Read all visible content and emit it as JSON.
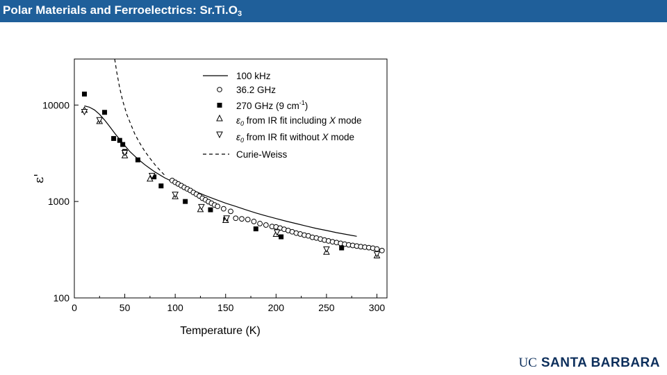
{
  "header": {
    "title_main": "Polar Materials and Ferroelectrics: Sr.Ti.O",
    "title_sub": "3",
    "bg_color": "#1f5f9a"
  },
  "logo": {
    "uc": "UC",
    "name": "SANTA BARBARA",
    "color": "#0d2f5c"
  },
  "chart_data": {
    "type": "scatter",
    "title": "",
    "xlabel": "Temperature (K)",
    "ylabel": "ε'",
    "xlim": [
      0,
      310
    ],
    "ylim": [
      100,
      30000
    ],
    "yscale": "log",
    "x_ticks": [
      0,
      50,
      100,
      150,
      200,
      250,
      300
    ],
    "y_ticks": [
      100,
      1000,
      10000
    ],
    "y_tick_labels": [
      "100",
      "1000",
      "10000"
    ],
    "grid": false,
    "legend_position": "top-right",
    "legend": {
      "line_100khz": "100 kHz",
      "ghz362_text": "36.2 GHz",
      "ghz270_text": "270 GHz (9 cm",
      "ghz270_sup": "-1",
      "ghz270_close": ")",
      "ir_incl_sym": "ε",
      "ir_incl_sub": "0",
      "ir_incl_text": " from IR fit including ",
      "ir_incl_x": "X",
      "ir_incl_tail": " mode",
      "ir_excl_sym": "ε",
      "ir_excl_sub": "0",
      "ir_excl_text": " from IR fit without ",
      "ir_excl_x": "X",
      "ir_excl_tail": " mode",
      "curie_weiss": "Curie-Weiss"
    },
    "series": [
      {
        "name": "100 kHz",
        "style": "solid-line",
        "points": [
          [
            10,
            9800
          ],
          [
            15,
            9500
          ],
          [
            20,
            8900
          ],
          [
            25,
            8000
          ],
          [
            30,
            7000
          ],
          [
            35,
            6000
          ],
          [
            40,
            5100
          ],
          [
            45,
            4400
          ],
          [
            50,
            3800
          ],
          [
            55,
            3300
          ],
          [
            60,
            2950
          ],
          [
            65,
            2650
          ],
          [
            70,
            2400
          ],
          [
            75,
            2200
          ],
          [
            80,
            2020
          ],
          [
            90,
            1750
          ],
          [
            100,
            1560
          ],
          [
            110,
            1400
          ],
          [
            120,
            1270
          ],
          [
            130,
            1150
          ],
          [
            140,
            1050
          ],
          [
            150,
            960
          ],
          [
            160,
            890
          ],
          [
            170,
            820
          ],
          [
            180,
            760
          ],
          [
            190,
            710
          ],
          [
            200,
            665
          ],
          [
            210,
            625
          ],
          [
            220,
            590
          ],
          [
            230,
            555
          ],
          [
            240,
            525
          ],
          [
            250,
            500
          ],
          [
            260,
            475
          ],
          [
            270,
            455
          ],
          [
            280,
            435
          ]
        ]
      },
      {
        "name": "36.2 GHz",
        "style": "open-circle",
        "points": [
          [
            97,
            1650
          ],
          [
            100,
            1580
          ],
          [
            103,
            1520
          ],
          [
            106,
            1460
          ],
          [
            109,
            1400
          ],
          [
            112,
            1350
          ],
          [
            115,
            1300
          ],
          [
            118,
            1240
          ],
          [
            121,
            1190
          ],
          [
            124,
            1140
          ],
          [
            127,
            1080
          ],
          [
            130,
            1040
          ],
          [
            133,
            995
          ],
          [
            136,
            960
          ],
          [
            139,
            920
          ],
          [
            142,
            890
          ],
          [
            148,
            840
          ],
          [
            155,
            790
          ],
          [
            160,
            670
          ],
          [
            166,
            660
          ],
          [
            172,
            650
          ],
          [
            178,
            620
          ],
          [
            184,
            590
          ],
          [
            190,
            570
          ],
          [
            196,
            550
          ],
          [
            200,
            545
          ],
          [
            204,
            530
          ],
          [
            208,
            515
          ],
          [
            212,
            500
          ],
          [
            216,
            485
          ],
          [
            220,
            470
          ],
          [
            224,
            460
          ],
          [
            228,
            448
          ],
          [
            232,
            440
          ],
          [
            236,
            425
          ],
          [
            240,
            418
          ],
          [
            244,
            408
          ],
          [
            248,
            398
          ],
          [
            252,
            390
          ],
          [
            256,
            382
          ],
          [
            260,
            375
          ],
          [
            264,
            368
          ],
          [
            268,
            361
          ],
          [
            272,
            355
          ],
          [
            276,
            350
          ],
          [
            280,
            345
          ],
          [
            284,
            340
          ],
          [
            288,
            336
          ],
          [
            292,
            332
          ],
          [
            296,
            328
          ],
          [
            300,
            322
          ],
          [
            305,
            310
          ]
        ]
      },
      {
        "name": "270 GHz (9 cm-1)",
        "style": "filled-square",
        "points": [
          [
            10,
            13000
          ],
          [
            30,
            8400
          ],
          [
            39,
            4500
          ],
          [
            45,
            4300
          ],
          [
            48,
            3900
          ],
          [
            50,
            3300
          ],
          [
            63,
            2700
          ],
          [
            79,
            1800
          ],
          [
            86,
            1450
          ],
          [
            110,
            1000
          ],
          [
            135,
            820
          ],
          [
            150,
            650
          ],
          [
            180,
            520
          ],
          [
            205,
            430
          ],
          [
            265,
            330
          ]
        ]
      },
      {
        "name": "ε0 from IR fit including X mode",
        "style": "open-triangle-up",
        "points": [
          [
            10,
            8900
          ],
          [
            25,
            6800
          ],
          [
            50,
            3000
          ],
          [
            75,
            1720
          ],
          [
            100,
            1130
          ],
          [
            125,
            830
          ],
          [
            150,
            640
          ],
          [
            200,
            460
          ],
          [
            250,
            300
          ],
          [
            300,
            275
          ]
        ]
      },
      {
        "name": "ε0 from IR fit without X mode",
        "style": "open-triangle-down",
        "points": [
          [
            10,
            8500
          ],
          [
            25,
            7000
          ],
          [
            50,
            3200
          ],
          [
            77,
            1850
          ],
          [
            100,
            1180
          ],
          [
            126,
            880
          ],
          [
            151,
            670
          ],
          [
            201,
            480
          ],
          [
            250,
            320
          ],
          [
            300,
            285
          ]
        ]
      },
      {
        "name": "Curie-Weiss",
        "style": "dashed-line",
        "points": [
          [
            40,
            30000
          ],
          [
            42,
            22000
          ],
          [
            45,
            15000
          ],
          [
            48,
            11000
          ],
          [
            52,
            8000
          ],
          [
            56,
            6300
          ],
          [
            60,
            5000
          ],
          [
            65,
            4000
          ],
          [
            70,
            3300
          ],
          [
            75,
            2800
          ],
          [
            80,
            2400
          ],
          [
            85,
            2100
          ],
          [
            90,
            1850
          ]
        ]
      }
    ]
  }
}
